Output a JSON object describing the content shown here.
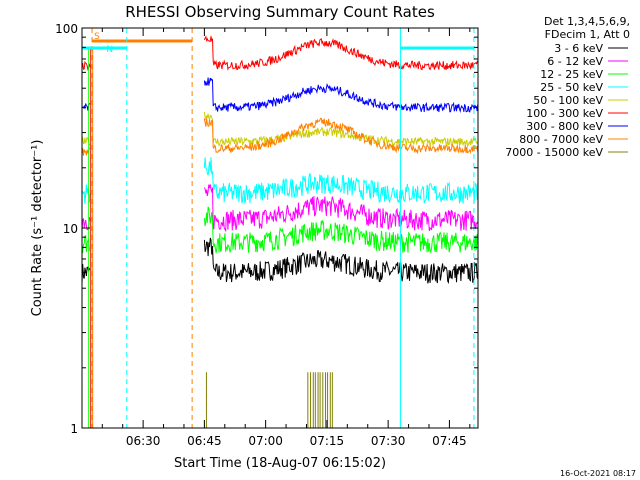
{
  "chart_data": {
    "type": "line",
    "title": "RHESSI Observing Summary Count Rates",
    "xlabel": "Start Time (18-Aug-07 06:15:02)",
    "ylabel": "Count Rate (s⁻¹ detector⁻¹)",
    "yscale": "log",
    "ylim": [
      1,
      100
    ],
    "xlim": [
      "06:15:02",
      "07:52:00"
    ],
    "x_ticks": [
      "06:30",
      "06:45",
      "07:00",
      "07:15",
      "07:30",
      "07:45"
    ],
    "y_ticks": [
      "1",
      "10",
      "100"
    ],
    "legend_header": [
      "Det 1,3,4,5,6,9,",
      "FDecim 1, Att 0"
    ],
    "legend_position": "right",
    "series": [
      {
        "name": "3 - 6 keV",
        "color": "#000000",
        "level": 6.0,
        "start_level": 6.0,
        "peak": 1.15
      },
      {
        "name": "6 - 12 keV",
        "color": "#ff00ff",
        "level": 11.0,
        "start_level": 11.0,
        "peak": 1.18
      },
      {
        "name": "12 - 25 keV",
        "color": "#00ff00",
        "level": 8.5,
        "start_level": 8.5,
        "peak": 1.15
      },
      {
        "name": "25 - 50 keV",
        "color": "#00ffff",
        "level": 15.0,
        "start_level": 15.0,
        "peak": 1.12
      },
      {
        "name": "50 - 100 keV",
        "color": "#cccc00",
        "level": 27.0,
        "start_level": 27.0,
        "peak": 1.12
      },
      {
        "name": "100 - 300 keV",
        "color": "#ff0000",
        "level": 65.0,
        "start_level": 65.0,
        "peak": 1.3
      },
      {
        "name": "300 - 800 keV",
        "color": "#0000ff",
        "level": 40.0,
        "start_level": 40.0,
        "peak": 1.25
      },
      {
        "name": "800 - 7000 keV",
        "color": "#ff8000",
        "level": 25.0,
        "start_level": 24.0,
        "peak": 1.35
      },
      {
        "name": "7000 - 15000 keV",
        "color": "#808000",
        "level": 0,
        "start_level": 0,
        "peak": 1.0
      }
    ],
    "intervals": [
      {
        "label": "S",
        "color": "#ff8000",
        "start": "06:17:30",
        "end": "06:42:00"
      },
      {
        "label": "N",
        "color": "#00ffff",
        "start": "06:15:02",
        "end": "06:26:00"
      },
      {
        "label": "",
        "color": "#00ffff",
        "start": "07:33:00",
        "end": "07:51:00"
      }
    ],
    "grid": false
  },
  "footer": {
    "timestamp": "16-Oct-2021 08:17"
  }
}
